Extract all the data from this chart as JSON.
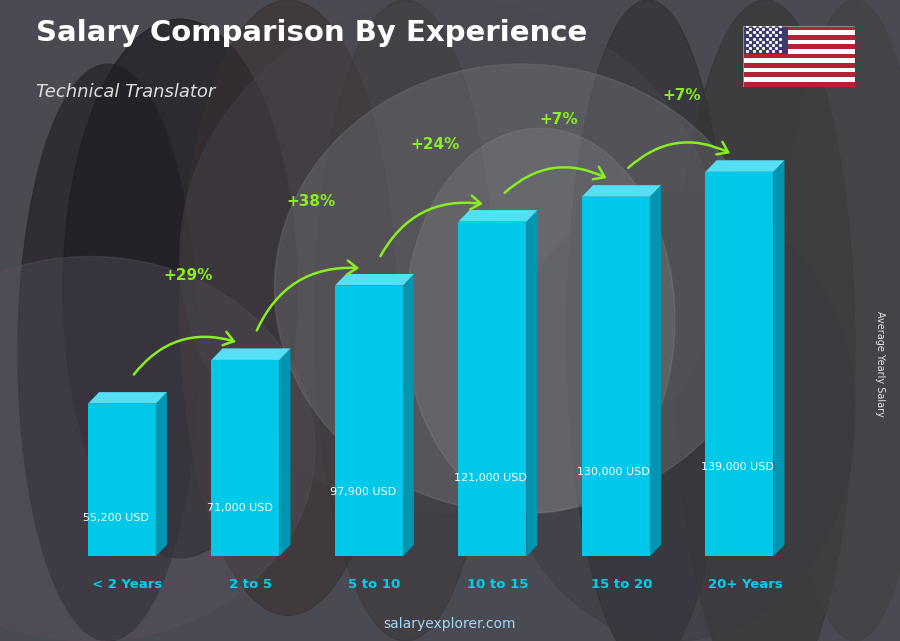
{
  "title": "Salary Comparison By Experience",
  "subtitle": "Technical Translator",
  "categories": [
    "< 2 Years",
    "2 to 5",
    "5 to 10",
    "10 to 15",
    "15 to 20",
    "20+ Years"
  ],
  "values": [
    55200,
    71000,
    97900,
    121000,
    130000,
    139000
  ],
  "bar_color_front": "#00c8e8",
  "bar_color_top": "#55dff5",
  "bar_color_side": "#0095b0",
  "salary_labels": [
    "55,200 USD",
    "71,000 USD",
    "97,900 USD",
    "121,000 USD",
    "130,000 USD",
    "139,000 USD"
  ],
  "pct_labels": [
    null,
    "+29%",
    "+38%",
    "+24%",
    "+7%",
    "+7%"
  ],
  "ylabel": "Average Yearly Salary",
  "watermark": "salaryexplorer.com",
  "title_color": "#ffffff",
  "subtitle_color": "#dddddd",
  "label_color": "#ffffff",
  "pct_color": "#88ee22",
  "xlabel_color": "#00cfef",
  "bg_color": "#5a5a62"
}
